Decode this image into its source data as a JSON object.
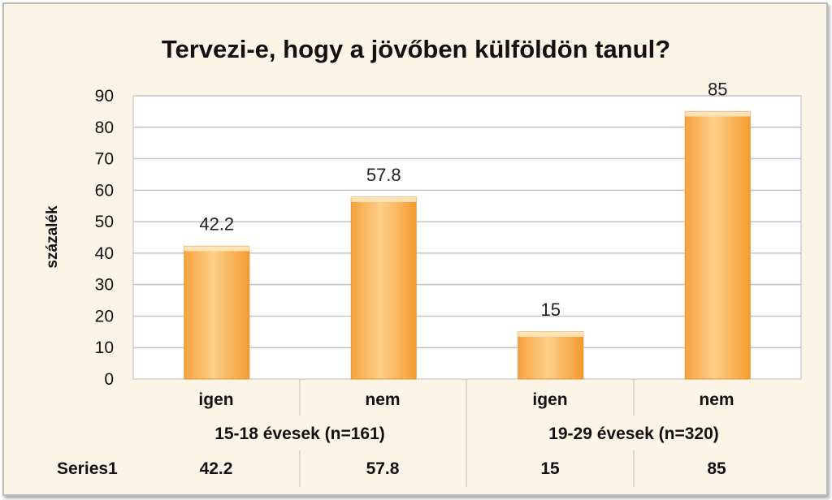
{
  "chart_data": {
    "type": "bar",
    "title": "Tervezi-e, hogy a jövőben külföldön tanul?",
    "ylabel": "százalék",
    "xlabel": "",
    "ylim": [
      0,
      90
    ],
    "yticks": [
      "0",
      "10",
      "20",
      "30",
      "40",
      "50",
      "60",
      "70",
      "80",
      "90"
    ],
    "grid": true,
    "categories": [
      "igen",
      "nem",
      "igen",
      "nem"
    ],
    "groups": [
      {
        "label": "15-18 évesek (n=161)",
        "span": 2
      },
      {
        "label": "19-29 évesek (n=320)",
        "span": 2
      }
    ],
    "series": [
      {
        "name": "Series1",
        "values": [
          42.2,
          57.8,
          15,
          85
        ]
      }
    ],
    "data_labels": [
      "42.2",
      "57.8",
      "15",
      "85"
    ],
    "table_values": [
      "42.2",
      "57.8",
      "15",
      "85"
    ],
    "colors": {
      "bar_light": "#fddfae",
      "bar_mid": "#fbb961",
      "bar_dark": "#f39c2e",
      "background": "#fdf4e8",
      "plot_area": "#ffffff"
    }
  }
}
